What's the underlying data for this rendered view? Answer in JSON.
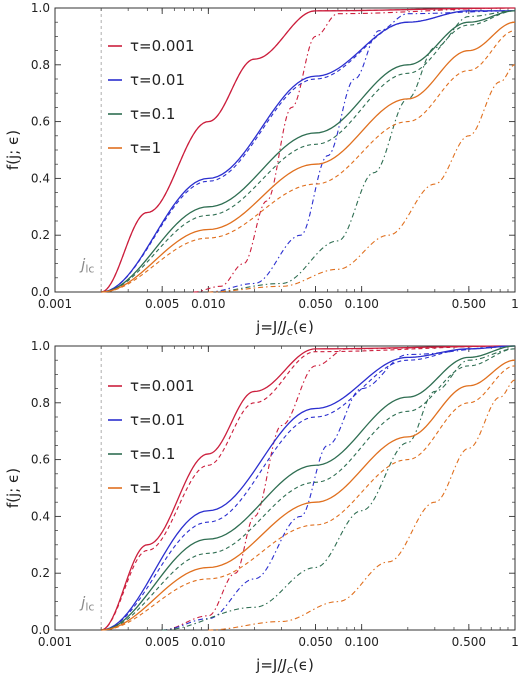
{
  "legend": {
    "items": [
      {
        "label": "τ=0.001",
        "color": "#cc1f3d"
      },
      {
        "label": "τ=0.01",
        "color": "#2b2fcf"
      },
      {
        "label": "τ=0.1",
        "color": "#2f6e52"
      },
      {
        "label": "τ=1",
        "color": "#e0701f"
      }
    ],
    "position": "top-left"
  },
  "chart_data": [
    {
      "type": "line",
      "xscale": "log",
      "xlabel": "j=J/J_c(ϵ)",
      "ylabel": "f(j; ϵ)",
      "xlim": [
        0.001,
        1.0
      ],
      "ylim": [
        0.0,
        1.0
      ],
      "xticks": [
        0.001,
        0.005,
        0.01,
        0.05,
        0.1,
        0.5,
        1
      ],
      "xtick_labels": [
        "0.001",
        "0.005",
        "0.010",
        "0.050",
        "0.100",
        "0.500",
        "1"
      ],
      "yticks": [
        0.0,
        0.2,
        0.4,
        0.6,
        0.8,
        1.0
      ],
      "ytick_labels": [
        "0.0",
        "0.2",
        "0.4",
        "0.6",
        "0.8",
        "1.0"
      ],
      "j_lc": 0.002,
      "annotation": "j_lc",
      "line_styles": {
        "solid": "solid",
        "dashed": "dashed",
        "dashdot": "dot-dash"
      },
      "series": [
        {
          "name": "τ=0.001",
          "color": "#cc1f3d",
          "style": "solid",
          "x": [
            0.002,
            0.004,
            0.01,
            0.02,
            0.05,
            1.0
          ],
          "y": [
            0.0,
            0.28,
            0.6,
            0.82,
            0.99,
            1.0
          ]
        },
        {
          "color": "#cc1f3d",
          "style": "dashed",
          "x": [
            0.002,
            0.004,
            0.01,
            0.02,
            0.05,
            1.0
          ],
          "y": [
            0.0,
            0.28,
            0.6,
            0.82,
            0.99,
            1.0
          ]
        },
        {
          "color": "#cc1f3d",
          "style": "dashdot",
          "x": [
            0.008,
            0.012,
            0.017,
            0.024,
            0.035,
            0.05,
            0.07,
            1.0
          ],
          "y": [
            0.0,
            0.02,
            0.1,
            0.32,
            0.65,
            0.9,
            0.98,
            1.0
          ]
        },
        {
          "name": "τ=0.01",
          "color": "#2b2fcf",
          "style": "solid",
          "x": [
            0.002,
            0.01,
            0.05,
            0.2,
            0.5,
            1.0
          ],
          "y": [
            0.0,
            0.4,
            0.76,
            0.95,
            0.99,
            0.99
          ]
        },
        {
          "color": "#2b2fcf",
          "style": "dashed",
          "x": [
            0.002,
            0.01,
            0.05,
            0.2,
            0.5,
            1.0
          ],
          "y": [
            0.0,
            0.39,
            0.75,
            0.95,
            0.99,
            0.99
          ]
        },
        {
          "color": "#2b2fcf",
          "style": "dashdot",
          "x": [
            0.01,
            0.02,
            0.04,
            0.06,
            0.09,
            0.13,
            0.2,
            1.0
          ],
          "y": [
            0.0,
            0.03,
            0.2,
            0.48,
            0.75,
            0.92,
            0.98,
            0.99
          ]
        },
        {
          "name": "τ=0.1",
          "color": "#2f6e52",
          "style": "solid",
          "x": [
            0.002,
            0.01,
            0.05,
            0.2,
            0.5,
            1.0
          ],
          "y": [
            0.0,
            0.3,
            0.56,
            0.8,
            0.95,
            0.99
          ]
        },
        {
          "color": "#2f6e52",
          "style": "dashed",
          "x": [
            0.002,
            0.01,
            0.05,
            0.2,
            0.5,
            1.0
          ],
          "y": [
            0.0,
            0.27,
            0.52,
            0.77,
            0.94,
            0.99
          ]
        },
        {
          "color": "#2f6e52",
          "style": "dashdot",
          "x": [
            0.01,
            0.03,
            0.07,
            0.12,
            0.2,
            0.3,
            0.5,
            1.0
          ],
          "y": [
            0.0,
            0.03,
            0.18,
            0.42,
            0.68,
            0.86,
            0.97,
            0.99
          ]
        },
        {
          "name": "τ=1",
          "color": "#e0701f",
          "style": "solid",
          "x": [
            0.002,
            0.01,
            0.05,
            0.2,
            0.5,
            1.0
          ],
          "y": [
            0.0,
            0.22,
            0.45,
            0.68,
            0.85,
            0.95
          ]
        },
        {
          "color": "#e0701f",
          "style": "dashed",
          "x": [
            0.002,
            0.01,
            0.05,
            0.2,
            0.5,
            1.0
          ],
          "y": [
            0.0,
            0.19,
            0.38,
            0.6,
            0.78,
            0.92
          ]
        },
        {
          "color": "#e0701f",
          "style": "dashdot",
          "x": [
            0.01,
            0.03,
            0.07,
            0.15,
            0.3,
            0.5,
            0.8,
            1.0
          ],
          "y": [
            0.0,
            0.02,
            0.08,
            0.2,
            0.38,
            0.55,
            0.74,
            0.8
          ]
        }
      ]
    },
    {
      "type": "line",
      "xscale": "log",
      "xlabel": "j=J/J_c(ϵ)",
      "ylabel": "f(j; ϵ)",
      "xlim": [
        0.001,
        1.0
      ],
      "ylim": [
        0.0,
        1.0
      ],
      "xticks": [
        0.001,
        0.005,
        0.01,
        0.05,
        0.1,
        0.5,
        1
      ],
      "xtick_labels": [
        "0.001",
        "0.005",
        "0.010",
        "0.050",
        "0.100",
        "0.500",
        "1"
      ],
      "yticks": [
        0.0,
        0.2,
        0.4,
        0.6,
        0.8,
        1.0
      ],
      "ytick_labels": [
        "0.0",
        "0.2",
        "0.4",
        "0.6",
        "0.8",
        "1.0"
      ],
      "j_lc": 0.002,
      "annotation": "j_lc",
      "line_styles": {
        "solid": "solid",
        "dashed": "dashed",
        "dashdot": "dot-dash"
      },
      "series": [
        {
          "name": "τ=0.001",
          "color": "#cc1f3d",
          "style": "solid",
          "x": [
            0.002,
            0.004,
            0.01,
            0.02,
            0.05,
            1.0
          ],
          "y": [
            0.0,
            0.3,
            0.62,
            0.84,
            0.99,
            1.0
          ]
        },
        {
          "color": "#cc1f3d",
          "style": "dashed",
          "x": [
            0.002,
            0.004,
            0.01,
            0.02,
            0.05,
            1.0
          ],
          "y": [
            0.0,
            0.28,
            0.58,
            0.8,
            0.98,
            1.0
          ]
        },
        {
          "color": "#cc1f3d",
          "style": "dashdot",
          "x": [
            0.005,
            0.01,
            0.015,
            0.02,
            0.03,
            0.05,
            0.08,
            1.0
          ],
          "y": [
            0.0,
            0.05,
            0.2,
            0.4,
            0.72,
            0.93,
            0.99,
            1.0
          ]
        },
        {
          "name": "τ=0.01",
          "color": "#2b2fcf",
          "style": "solid",
          "x": [
            0.002,
            0.01,
            0.05,
            0.2,
            0.5,
            1.0
          ],
          "y": [
            0.0,
            0.42,
            0.78,
            0.96,
            0.99,
            1.0
          ]
        },
        {
          "color": "#2b2fcf",
          "style": "dashed",
          "x": [
            0.002,
            0.01,
            0.05,
            0.2,
            0.5,
            1.0
          ],
          "y": [
            0.0,
            0.38,
            0.75,
            0.95,
            0.99,
            1.0
          ]
        },
        {
          "color": "#2b2fcf",
          "style": "dashdot",
          "x": [
            0.005,
            0.01,
            0.02,
            0.04,
            0.06,
            0.1,
            0.2,
            1.0
          ],
          "y": [
            0.0,
            0.04,
            0.18,
            0.4,
            0.65,
            0.85,
            0.97,
            1.0
          ]
        },
        {
          "name": "τ=0.1",
          "color": "#2f6e52",
          "style": "solid",
          "x": [
            0.002,
            0.01,
            0.05,
            0.2,
            0.5,
            1.0
          ],
          "y": [
            0.0,
            0.32,
            0.58,
            0.82,
            0.96,
            1.0
          ]
        },
        {
          "color": "#2f6e52",
          "style": "dashed",
          "x": [
            0.002,
            0.01,
            0.05,
            0.2,
            0.5,
            1.0
          ],
          "y": [
            0.0,
            0.27,
            0.52,
            0.77,
            0.93,
            0.99
          ]
        },
        {
          "color": "#2f6e52",
          "style": "dashdot",
          "x": [
            0.005,
            0.02,
            0.05,
            0.1,
            0.2,
            0.3,
            0.5,
            1.0
          ],
          "y": [
            0.0,
            0.08,
            0.22,
            0.42,
            0.66,
            0.84,
            0.95,
            0.99
          ]
        },
        {
          "name": "τ=1",
          "color": "#e0701f",
          "style": "solid",
          "x": [
            0.002,
            0.01,
            0.05,
            0.2,
            0.5,
            1.0
          ],
          "y": [
            0.0,
            0.22,
            0.45,
            0.68,
            0.86,
            0.95
          ]
        },
        {
          "color": "#e0701f",
          "style": "dashed",
          "x": [
            0.002,
            0.01,
            0.05,
            0.2,
            0.5,
            1.0
          ],
          "y": [
            0.0,
            0.18,
            0.37,
            0.6,
            0.8,
            0.93
          ]
        },
        {
          "color": "#e0701f",
          "style": "dashdot",
          "x": [
            0.01,
            0.03,
            0.07,
            0.15,
            0.3,
            0.5,
            0.8,
            1.0
          ],
          "y": [
            0.0,
            0.03,
            0.1,
            0.24,
            0.45,
            0.64,
            0.82,
            0.88
          ]
        }
      ]
    }
  ]
}
